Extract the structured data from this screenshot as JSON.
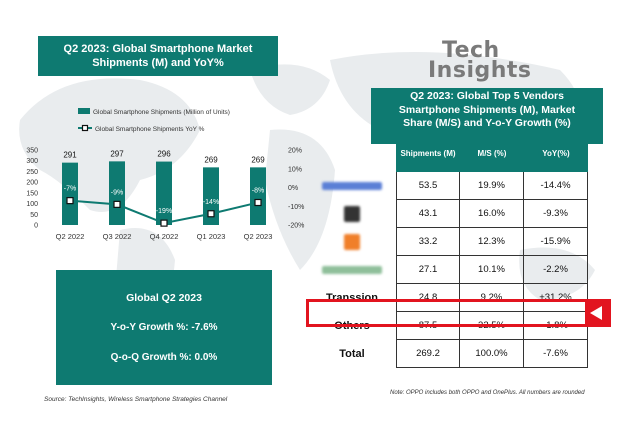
{
  "left_panel": {
    "title_line1": "Q2 2023: Global Smartphone Market",
    "title_line2": "Shipments (M) and YoY%"
  },
  "logo": {
    "line1": "Tech",
    "line2": "Insights"
  },
  "chart_data": {
    "type": "bar",
    "categories": [
      "Q2 2022",
      "Q3 2022",
      "Q4 2022",
      "Q1 2023",
      "Q2 2023"
    ],
    "series": [
      {
        "name": "Global Smartphone Shipments (Million of Units)",
        "kind": "bar",
        "axis": "left",
        "values": [
          291,
          297,
          296,
          269,
          269
        ]
      },
      {
        "name": "Global Smartphone Shipments YoY %",
        "kind": "line",
        "axis": "right",
        "values": [
          -7,
          -9,
          -19,
          -14,
          -8
        ]
      }
    ],
    "data_labels_bar": [
      "291",
      "297",
      "296",
      "269",
      "269"
    ],
    "data_labels_line": [
      "-7%",
      "-9%",
      "-19%",
      "-14%",
      "-8%"
    ],
    "left_axis": {
      "ylim": [
        0,
        350
      ],
      "ticks": [
        "350",
        "300",
        "250",
        "200",
        "150",
        "100",
        "50",
        "0"
      ]
    },
    "right_axis": {
      "ylim": [
        -20,
        20
      ],
      "ticks": [
        "20%",
        "10%",
        "0%",
        "-10%",
        "-20%"
      ]
    },
    "legend_position": "top",
    "colors": {
      "bar": "#0e7a71",
      "line": "#0e7a71",
      "marker_fill": "#ffffff"
    }
  },
  "summary": {
    "title": "Global Q2 2023",
    "yoy": "Y-o-Y Growth %: -7.6%",
    "qoq": "Q-o-Q Growth %: 0.0%"
  },
  "source": "Source: TechInsights, Wireless Smartphone Strategies Channel",
  "right_panel": {
    "title_line1": "Q2 2023: Global Top 5 Vendors",
    "title_line2": "Smartphone Shipments (M), Market",
    "title_line3": "Share (M/S) and Y-o-Y Growth (%)"
  },
  "table": {
    "headers": [
      "Shipments (M)",
      "M/S (%)",
      "YoY(%)"
    ],
    "rows": [
      {
        "vendor": "",
        "logo_color": "#5b7fd6",
        "values": [
          "53.5",
          "19.9%",
          "-14.4%"
        ]
      },
      {
        "vendor": "",
        "logo_color": "#333333",
        "values": [
          "43.1",
          "16.0%",
          "-9.3%"
        ]
      },
      {
        "vendor": "",
        "logo_color": "#f07f2a",
        "values": [
          "33.2",
          "12.3%",
          "-15.9%"
        ]
      },
      {
        "vendor": "",
        "logo_color": "#8fbf9a",
        "values": [
          "27.1",
          "10.1%",
          "-2.2%"
        ]
      },
      {
        "vendor": "Transsion",
        "logo_color": "",
        "values": [
          "24.8",
          "9.2%",
          "+31.2%"
        ]
      },
      {
        "vendor": "Others",
        "logo_color": "",
        "values": [
          "87.5",
          "32.5%",
          "-1.8%"
        ]
      },
      {
        "vendor": "Total",
        "logo_color": "",
        "values": [
          "269.2",
          "100.0%",
          "-7.6%"
        ]
      }
    ],
    "highlight_color": "#e2141f"
  },
  "note": "Note: OPPO includes both OPPO and OnePlus. All numbers are rounded"
}
